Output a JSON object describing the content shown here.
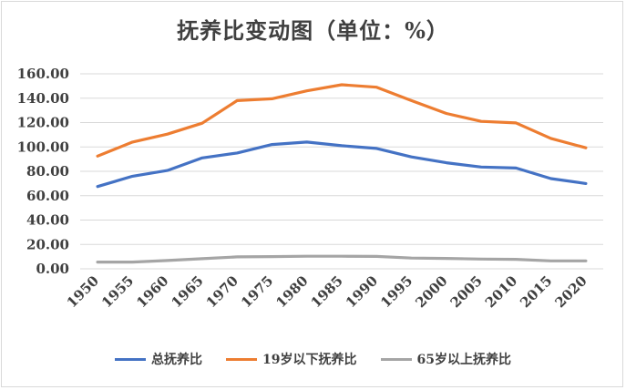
{
  "chart_data": {
    "type": "line",
    "title": "抚养比变动图（单位：%）",
    "categories": [
      "1950",
      "1955",
      "1960",
      "1965",
      "1970",
      "1975",
      "1980",
      "1985",
      "1990",
      "1995",
      "2000",
      "2005",
      "2010",
      "2015",
      "2020"
    ],
    "ylim": [
      0,
      160
    ],
    "yticks": [
      "0.00",
      "20.00",
      "40.00",
      "60.00",
      "80.00",
      "100.00",
      "120.00",
      "140.00",
      "160.00"
    ],
    "grid": true,
    "legend_position": "bottom",
    "series": [
      {
        "name": "总抚养比",
        "color": "#4472c4",
        "values": [
          67.5,
          76.0,
          80.7,
          91.0,
          95.0,
          102.0,
          104.0,
          101.0,
          98.8,
          91.8,
          87.0,
          83.5,
          82.7,
          74.0,
          70.0
        ]
      },
      {
        "name": "19岁以下抚养比",
        "color": "#ed7d31",
        "values": [
          92.5,
          104.0,
          110.5,
          119.5,
          138.0,
          139.5,
          146.0,
          151.0,
          149.0,
          138.0,
          127.5,
          121.0,
          119.7,
          107.0,
          99.3
        ]
      },
      {
        "name": "65岁以上抚养比",
        "color": "#a5a5a5",
        "values": [
          5.5,
          5.5,
          6.8,
          8.3,
          9.8,
          10.0,
          10.3,
          10.3,
          10.2,
          8.8,
          8.5,
          8.0,
          7.8,
          6.5,
          6.5
        ]
      }
    ]
  }
}
